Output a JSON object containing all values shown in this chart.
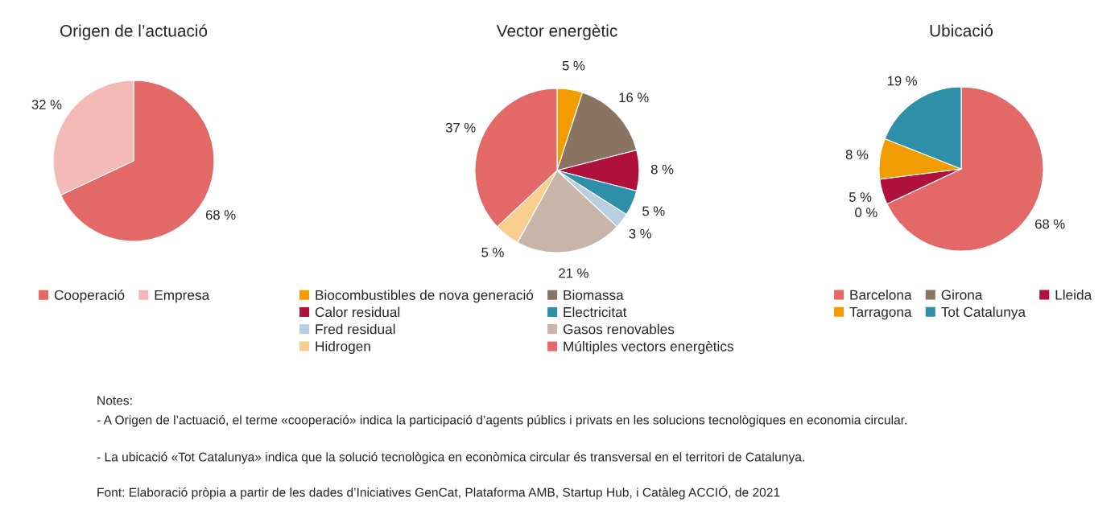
{
  "chart_data": [
    {
      "type": "pie",
      "title": "Origen de l’actuació",
      "categories": [
        "Cooperació",
        "Empresa"
      ],
      "values": [
        68,
        32
      ],
      "value_labels": [
        "68 %",
        "32 %"
      ],
      "colors": [
        "#e36868",
        "#f4b9b4"
      ],
      "legend": "bottom",
      "annotations": [
        "Notes:",
        "- A Origen de l’actuació, el terme «cooperació» indica la participació d’agents públics i privats en les solucions tecnològiques en economia circular.",
        "- La ubicació «Tot Catalunya» indica que la solució tecnològica en econòmica circular és transversal en el territori de Catalunya.",
        "Font: Elaboració pròpia a partir de les dades d’Iniciatives GenCat, Plataforma AMB, Startup Hub, i Catàleg ACCIÓ, de 2021"
      ]
    },
    {
      "type": "pie",
      "title": "Vector energètic",
      "categories": [
        "Biocombustibles de nova generació",
        "Biomassa",
        "Calor residual",
        "Electricitat",
        "Fred residual",
        "Gasos renovables",
        "Hidrogen",
        "Múltiples vectors energètics"
      ],
      "values": [
        5,
        16,
        8,
        5,
        3,
        21,
        5,
        37
      ],
      "value_labels": [
        "5 %",
        "16 %",
        "8 %",
        "5 %",
        "3 %",
        "21 %",
        "5 %",
        "37 %"
      ],
      "colors": [
        "#f29c00",
        "#8a7360",
        "#b0103c",
        "#2d90a8",
        "#b8cfe0",
        "#c8b4a8",
        "#f8cf8e",
        "#e36868"
      ],
      "legend": "bottom"
    },
    {
      "type": "pie",
      "title": "Ubicació",
      "categories": [
        "Barcelona",
        "Girona",
        "Lleida",
        "Tarragona",
        "Tot Catalunya"
      ],
      "values": [
        68,
        0,
        5,
        8,
        19
      ],
      "value_labels": [
        "68 %",
        "0 %",
        "5 %",
        "8 %",
        "19 %"
      ],
      "colors": [
        "#e36868",
        "#8a7360",
        "#b0103c",
        "#f29c00",
        "#2d90a8"
      ],
      "legend": "bottom"
    }
  ]
}
